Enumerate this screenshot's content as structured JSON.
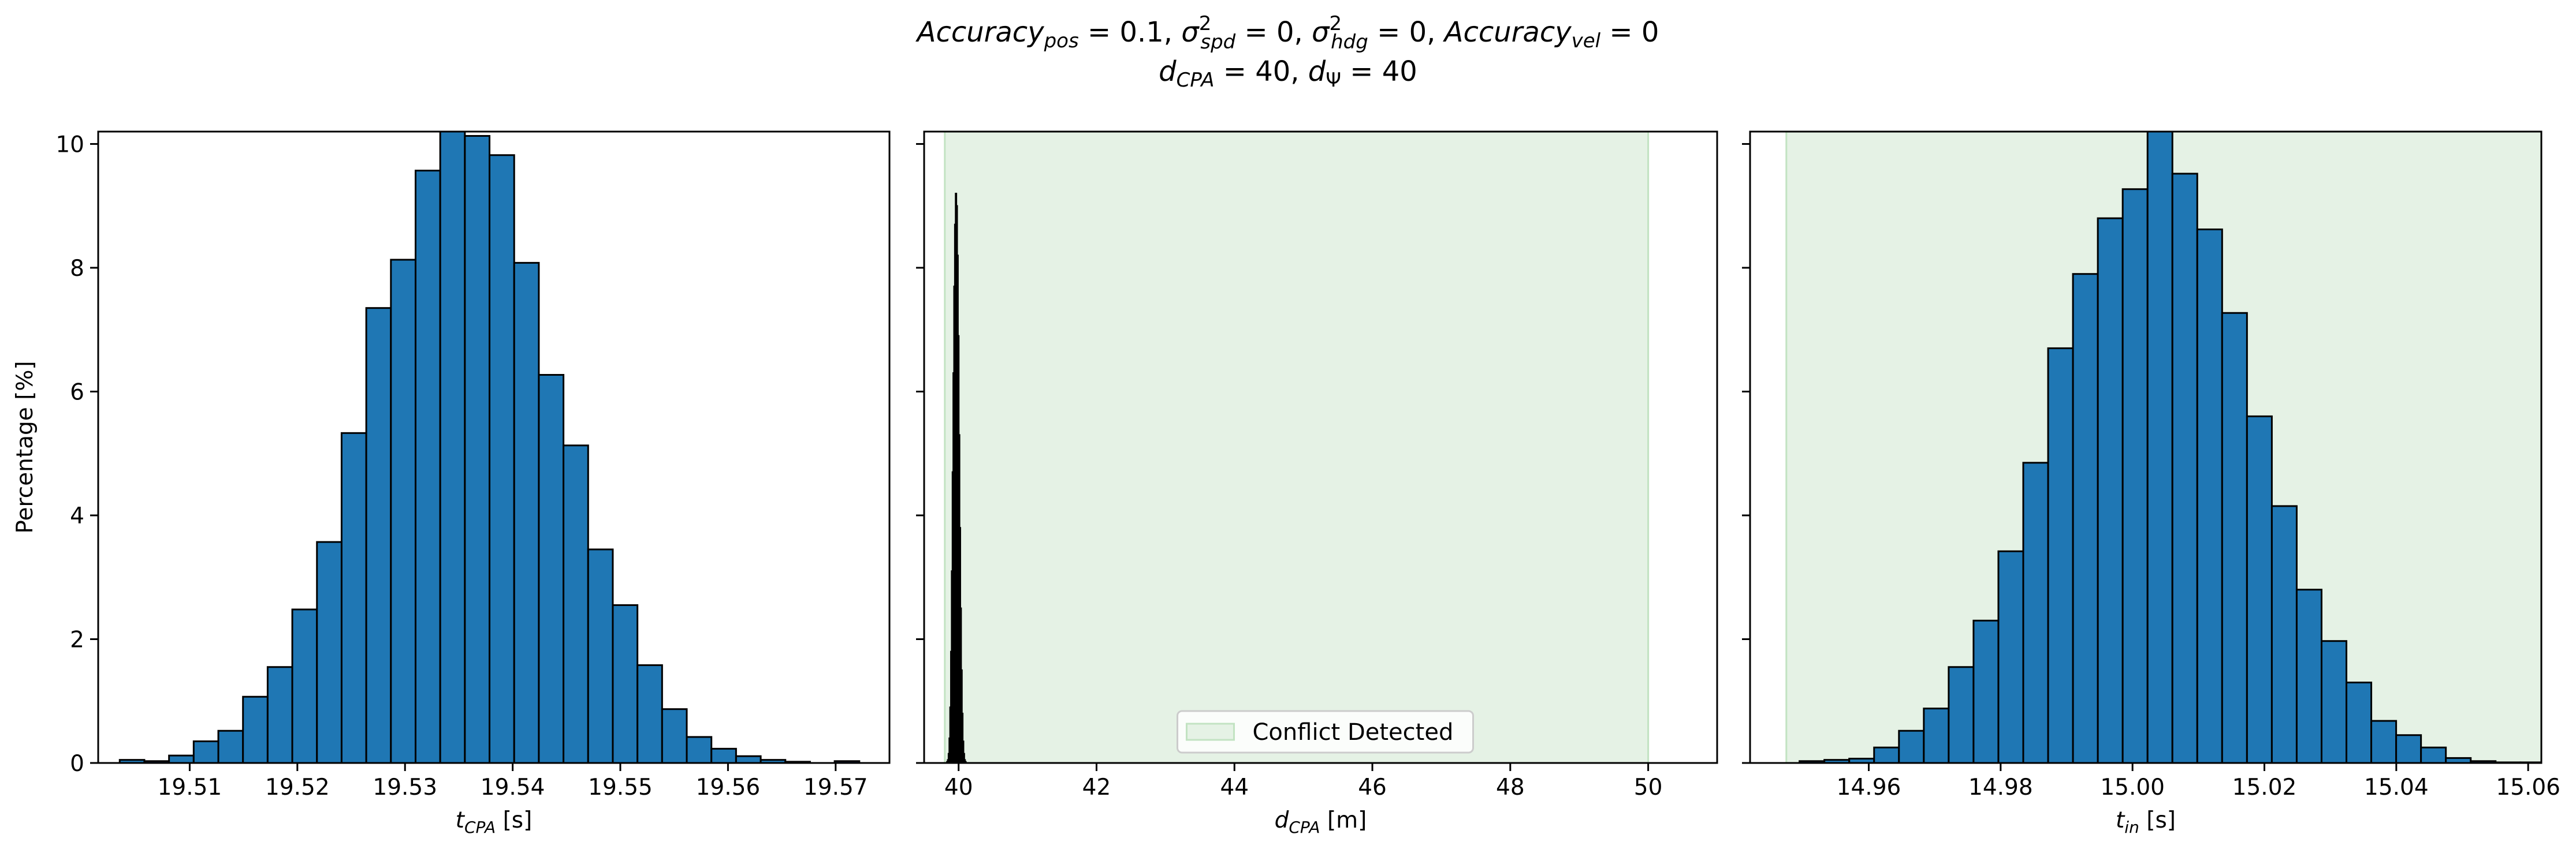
{
  "title_lines": [
    "Accuracy_pos = 0.1, σ²_spd = 0, σ²_hdg = 0, Accuracy_vel = 0",
    "d_CPA = 40, d_Ψ = 40"
  ],
  "colors": {
    "bar_fill": "#1f77b4",
    "bar_edge": "#000000",
    "conflict_region": "#e5f2e5",
    "conflict_region_edge": "#c2e3c2"
  },
  "chart_data": [
    {
      "type": "bar",
      "name": "t_CPA histogram",
      "xlabel": "t_CPA [s]",
      "ylabel": "Percentage [%]",
      "xlim": [
        19.5015,
        19.575
      ],
      "ylim": [
        0,
        10.2
      ],
      "xticks": [
        19.51,
        19.52,
        19.53,
        19.54,
        19.55,
        19.56,
        19.57
      ],
      "xtick_labels": [
        "19.51",
        "19.52",
        "19.53",
        "19.54",
        "19.55",
        "19.56",
        "19.57"
      ],
      "yticks": [
        0,
        2,
        4,
        6,
        8,
        10
      ],
      "ytick_labels": [
        "0",
        "2",
        "4",
        "6",
        "8",
        "10"
      ],
      "bin_start": 19.5035,
      "bin_width": 0.00229,
      "values": [
        0.05,
        0.03,
        0.12,
        0.35,
        0.52,
        1.07,
        1.55,
        2.48,
        3.57,
        5.33,
        7.35,
        8.13,
        9.57,
        10.2,
        10.13,
        9.82,
        8.08,
        6.27,
        5.13,
        3.45,
        2.55,
        1.58,
        0.87,
        0.42,
        0.23,
        0.11,
        0.05,
        0.02,
        0.0,
        0.03
      ]
    },
    {
      "type": "bar",
      "name": "d_CPA histogram",
      "xlabel": "d_CPA [m]",
      "ylabel": "",
      "xlim": [
        39.5,
        51.0
      ],
      "ylim": [
        0,
        10.2
      ],
      "xticks": [
        40,
        42,
        44,
        46,
        48,
        50
      ],
      "xtick_labels": [
        "40",
        "42",
        "44",
        "46",
        "48",
        "50"
      ],
      "yticks": [
        0,
        2,
        4,
        6,
        8,
        10
      ],
      "conflict_region": [
        39.8,
        50.0
      ],
      "legend": {
        "label": "Conflict Detected",
        "placement": "lower center"
      },
      "bin_start": 39.83,
      "bin_width": 0.0115,
      "values": [
        0.02,
        0.05,
        0.15,
        0.4,
        0.9,
        1.8,
        3.1,
        4.7,
        6.3,
        7.7,
        8.7,
        9.2,
        9.0,
        8.2,
        6.9,
        5.3,
        3.8,
        2.5,
        1.5,
        0.8,
        0.35,
        0.15,
        0.05,
        0.02
      ]
    },
    {
      "type": "bar",
      "name": "t_in histogram",
      "xlabel": "t_in [s]",
      "ylabel": "",
      "xlim": [
        14.942,
        15.062
      ],
      "ylim": [
        0,
        10.2
      ],
      "xticks": [
        14.96,
        14.98,
        15.0,
        15.02,
        15.04,
        15.06
      ],
      "xtick_labels": [
        "14.96",
        "14.98",
        "15.00",
        "15.02",
        "15.04",
        "15.06"
      ],
      "yticks": [
        0,
        2,
        4,
        6,
        8,
        10
      ],
      "conflict_region": [
        14.9475,
        15.1
      ],
      "bin_start": 14.9495,
      "bin_width": 0.00377,
      "values": [
        0.03,
        0.05,
        0.07,
        0.25,
        0.52,
        0.88,
        1.55,
        2.3,
        3.42,
        4.85,
        6.7,
        7.9,
        8.8,
        9.27,
        10.2,
        9.52,
        8.62,
        7.27,
        5.6,
        4.15,
        2.8,
        1.97,
        1.3,
        0.68,
        0.45,
        0.25,
        0.08,
        0.03,
        0.01,
        0.01
      ]
    }
  ]
}
